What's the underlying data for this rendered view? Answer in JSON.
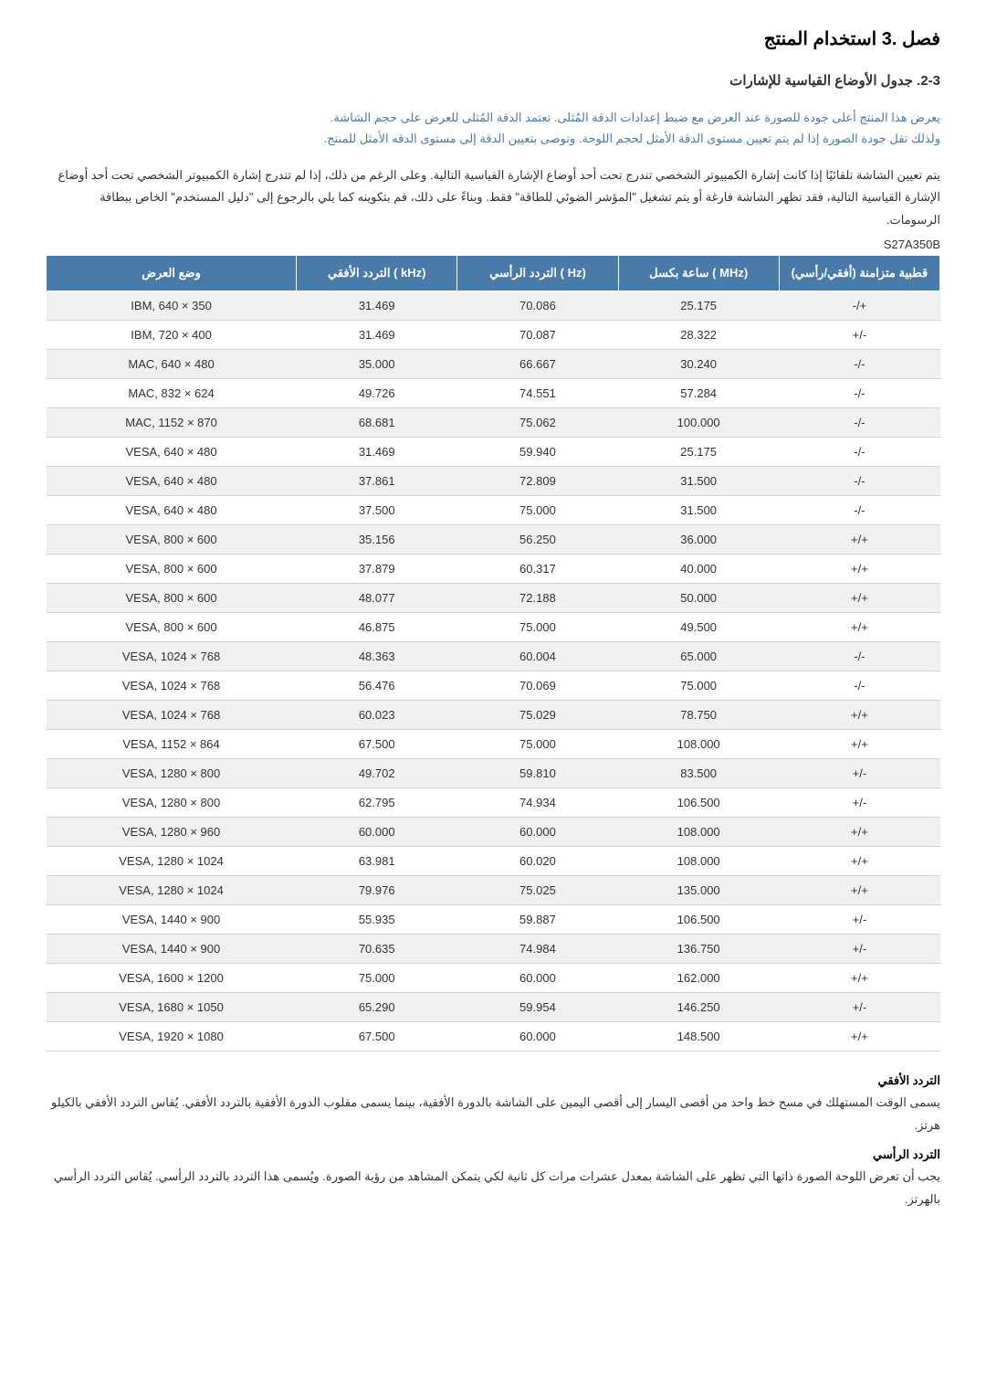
{
  "chapter_title": "فصل .3 استخدام المنتج",
  "section_title": "2-3. جدول الأوضاع القياسية للإشارات",
  "note_line1": "يعرض هذا المنتج أعلى جودة للصورة عند العرض مع ضبط إعدادات الدقة المُثلى. تعتمد الدقة المُثلى للعرض على حجم الشاشة.",
  "note_line2": "ولذلك تقل جودة الصورة إذا لم يتم تعيين مستوى الدقة الأمثل لحجم اللوحة. وتوصى بتعيين الدقة إلى مستوى الدقه الأمثل للمنتج.",
  "body_para": "يتم تعيين الشاشة تلقائيًا إذا كانت إشارة الكمبيوتر الشخصي تندرج تحت أحد أوضاع الإشارة القياسية التالية. وعلى الرغم من ذلك، إذا لم تندرج إشارة الكمبيوتر الشخصي تحت أحد أوضاع الإشارة القياسية التالية، فقد تظهر الشاشة فارغة أو يتم تشغيل \"المؤشر الضوئي للطاقة\" فقط. وبناءً على ذلك، قم بتكوينه كما يلي بالرجوع إلى \"دليل المستخدم\" الخاص ببطاقة الرسومات.",
  "model": "S27A350B",
  "table": {
    "header_bg": "#4a7aa8",
    "header_fg": "#ffffff",
    "row_odd_bg": "#f0f0f0",
    "row_even_bg": "#ffffff",
    "border_color": "#d0d0d0",
    "columns": [
      {
        "key": "mode",
        "label": "وضع العرض"
      },
      {
        "key": "hfreq",
        "label": "التردد الأفقي (\nkHz)"
      },
      {
        "key": "vfreq",
        "label": "التردد الرأسي (\nHz)"
      },
      {
        "key": "clock",
        "label": "ساعة بكسل (\nMHz)"
      },
      {
        "key": "pol",
        "label": "قطبية متزامنة\n(أفقي/رأسي)"
      }
    ],
    "rows": [
      {
        "mode": "IBM, 640 × 350",
        "hfreq": "31.469",
        "vfreq": "70.086",
        "clock": "25.175",
        "pol": "-/+"
      },
      {
        "mode": "IBM, 720 × 400",
        "hfreq": "31.469",
        "vfreq": "70.087",
        "clock": "28.322",
        "pol": "+/-"
      },
      {
        "mode": "MAC, 640 × 480",
        "hfreq": "35.000",
        "vfreq": "66.667",
        "clock": "30.240",
        "pol": "-/-"
      },
      {
        "mode": "MAC, 832 × 624",
        "hfreq": "49.726",
        "vfreq": "74.551",
        "clock": "57.284",
        "pol": "-/-"
      },
      {
        "mode": "MAC, 1152 × 870",
        "hfreq": "68.681",
        "vfreq": "75.062",
        "clock": "100.000",
        "pol": "-/-"
      },
      {
        "mode": "VESA, 640 × 480",
        "hfreq": "31.469",
        "vfreq": "59.940",
        "clock": "25.175",
        "pol": "-/-"
      },
      {
        "mode": "VESA, 640 × 480",
        "hfreq": "37.861",
        "vfreq": "72.809",
        "clock": "31.500",
        "pol": "-/-"
      },
      {
        "mode": "VESA, 640 × 480",
        "hfreq": "37.500",
        "vfreq": "75.000",
        "clock": "31.500",
        "pol": "-/-"
      },
      {
        "mode": "VESA, 800 × 600",
        "hfreq": "35.156",
        "vfreq": "56.250",
        "clock": "36.000",
        "pol": "+/+"
      },
      {
        "mode": "VESA, 800 × 600",
        "hfreq": "37.879",
        "vfreq": "60.317",
        "clock": "40.000",
        "pol": "+/+"
      },
      {
        "mode": "VESA, 800 × 600",
        "hfreq": "48.077",
        "vfreq": "72.188",
        "clock": "50.000",
        "pol": "+/+"
      },
      {
        "mode": "VESA, 800 × 600",
        "hfreq": "46.875",
        "vfreq": "75.000",
        "clock": "49.500",
        "pol": "+/+"
      },
      {
        "mode": "VESA, 1024 × 768",
        "hfreq": "48.363",
        "vfreq": "60.004",
        "clock": "65.000",
        "pol": "-/-"
      },
      {
        "mode": "VESA, 1024 × 768",
        "hfreq": "56.476",
        "vfreq": "70.069",
        "clock": "75.000",
        "pol": "-/-"
      },
      {
        "mode": "VESA, 1024 × 768",
        "hfreq": "60.023",
        "vfreq": "75.029",
        "clock": "78.750",
        "pol": "+/+"
      },
      {
        "mode": "VESA, 1152 × 864",
        "hfreq": "67.500",
        "vfreq": "75.000",
        "clock": "108.000",
        "pol": "+/+"
      },
      {
        "mode": "VESA, 1280 × 800",
        "hfreq": "49.702",
        "vfreq": "59.810",
        "clock": "83.500",
        "pol": "+/-"
      },
      {
        "mode": "VESA, 1280 × 800",
        "hfreq": "62.795",
        "vfreq": "74.934",
        "clock": "106.500",
        "pol": "+/-"
      },
      {
        "mode": "VESA, 1280 × 960",
        "hfreq": "60.000",
        "vfreq": "60.000",
        "clock": "108.000",
        "pol": "+/+"
      },
      {
        "mode": "VESA, 1280 × 1024",
        "hfreq": "63.981",
        "vfreq": "60.020",
        "clock": "108.000",
        "pol": "+/+"
      },
      {
        "mode": "VESA, 1280 × 1024",
        "hfreq": "79.976",
        "vfreq": "75.025",
        "clock": "135.000",
        "pol": "+/+"
      },
      {
        "mode": "VESA, 1440 × 900",
        "hfreq": "55.935",
        "vfreq": "59.887",
        "clock": "106.500",
        "pol": "+/-"
      },
      {
        "mode": "VESA, 1440 × 900",
        "hfreq": "70.635",
        "vfreq": "74.984",
        "clock": "136.750",
        "pol": "+/-"
      },
      {
        "mode": "VESA, 1600 × 1200",
        "hfreq": "75.000",
        "vfreq": "60.000",
        "clock": "162.000",
        "pol": "+/+"
      },
      {
        "mode": "VESA, 1680 × 1050",
        "hfreq": "65.290",
        "vfreq": "59.954",
        "clock": "146.250",
        "pol": "+/-"
      },
      {
        "mode": "VESA, 1920 × 1080",
        "hfreq": "67.500",
        "vfreq": "60.000",
        "clock": "148.500",
        "pol": "+/+"
      }
    ]
  },
  "terms": {
    "h_title": "التردد الأفقي",
    "h_body": "يسمى الوقت المستهلك في مسح خط واحد من أقصى اليسار إلى أقصى اليمين على الشاشة بالدورة الأفقية، بينما يسمى مقلوب الدورة الأفقية بالتردد الأفقي. يُقاس التردد الأفقي بالكيلو هرتز.",
    "v_title": "التردد الرأسي",
    "v_body": "يجب أن تعرض اللوحة الصورة ذاتها التي تظهر على الشاشة بمعدل عشرات مرات كل ثانية لكي يتمكن المشاهد من رؤية الصورة. ويُسمى هذا التردد بالتردد الرأسي. يُقاس التردد الرأسي بالهرتز."
  }
}
